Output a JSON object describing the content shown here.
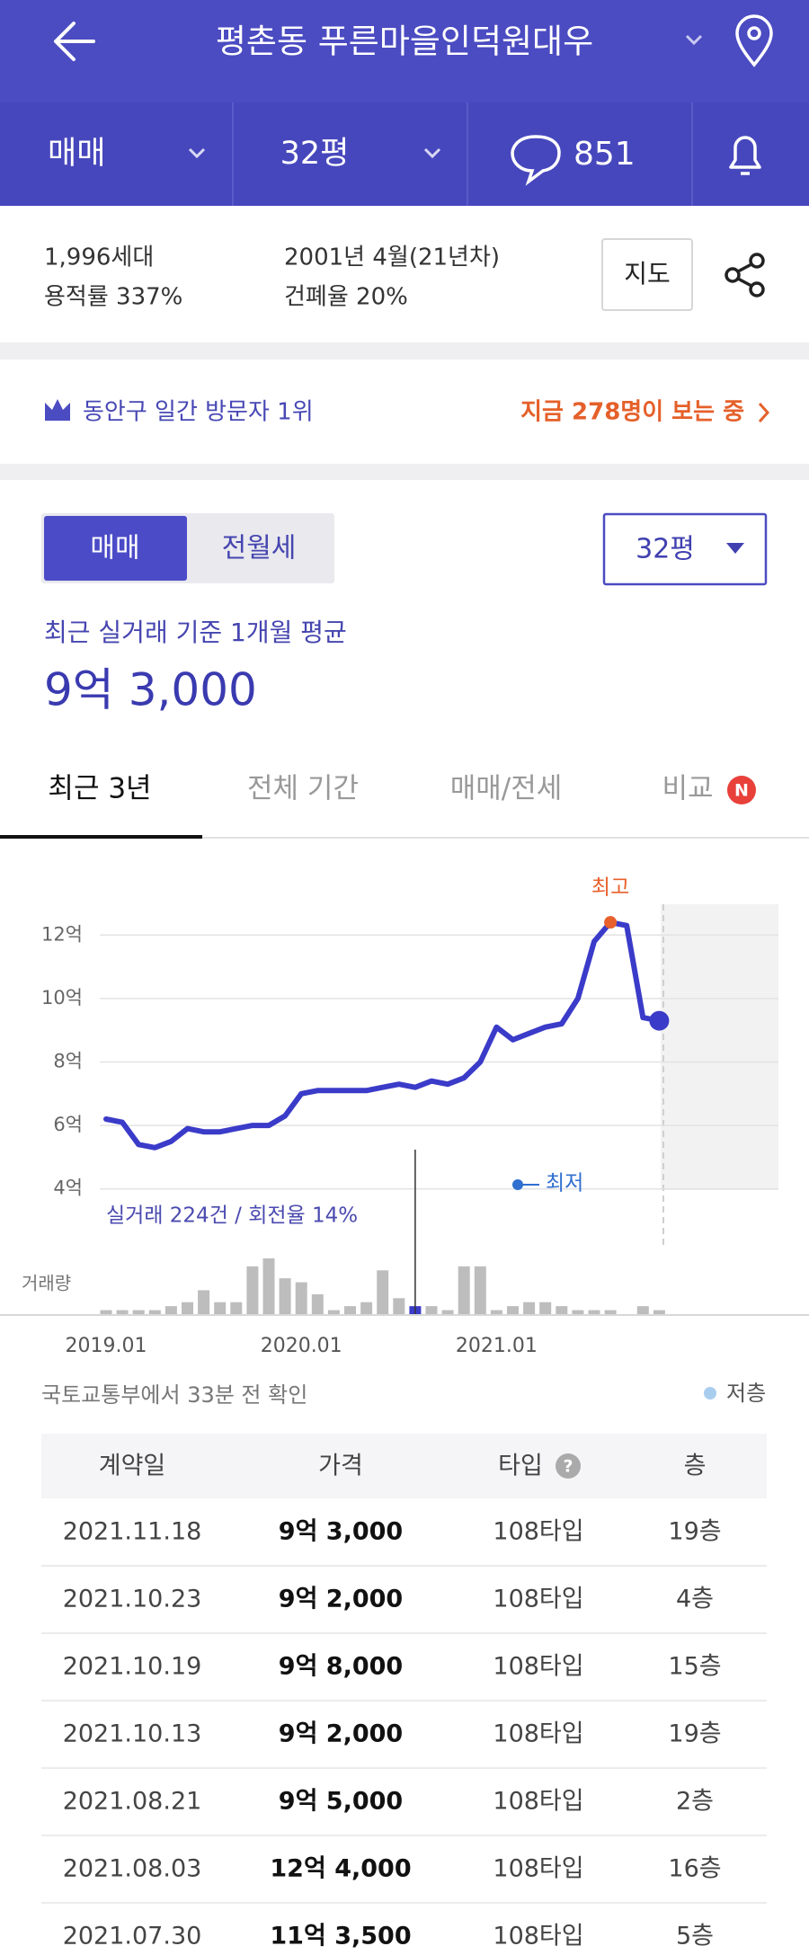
{
  "header": {
    "title": "평촌동 푸른마을인덕원대우",
    "deal_type": "매매",
    "size": "32평",
    "comments": "851"
  },
  "summary": {
    "households": "1,996세대",
    "far": "용적률 337%",
    "built": "2001년 4월(21년차)",
    "bcr": "건폐율 20%",
    "map_button": "지도"
  },
  "banner": {
    "rank": "동안구 일간 방문자 1위",
    "viewers": "지금 278명이 보는 중"
  },
  "price": {
    "tabs": [
      "매매",
      "전월세"
    ],
    "size": "32평",
    "caption": "최근 실거래 기준 1개월 평균",
    "average": "9억 3,000"
  },
  "period_tabs": [
    "최근 3년",
    "전체 기간",
    "매매/전세",
    "비교"
  ],
  "badge": "N",
  "chart_data": {
    "type": "line",
    "categories": [
      "2019.01",
      null,
      null,
      null,
      null,
      null,
      null,
      null,
      null,
      null,
      null,
      null,
      "2020.01",
      null,
      null,
      null,
      null,
      null,
      null,
      null,
      null,
      null,
      null,
      null,
      "2021.01",
      null,
      null,
      null,
      null,
      null,
      null,
      null,
      null,
      null,
      null
    ],
    "values": [
      6.2,
      6.1,
      5.4,
      5.3,
      5.5,
      5.9,
      5.8,
      5.8,
      5.9,
      6.0,
      6.0,
      6.3,
      7.0,
      7.1,
      7.1,
      7.1,
      7.1,
      7.2,
      7.3,
      7.2,
      7.4,
      7.3,
      7.5,
      8.0,
      9.1,
      8.7,
      8.9,
      9.1,
      9.2,
      10.0,
      11.8,
      12.4,
      12.3,
      9.4,
      9.3
    ],
    "color": "#3b3bc9",
    "volume_label": "거래량",
    "volume": [
      1,
      1,
      1,
      1,
      2,
      3,
      6,
      3,
      3,
      12,
      14,
      9,
      8,
      5,
      1,
      2,
      3,
      11,
      4,
      2,
      2,
      1,
      12,
      12,
      1,
      2,
      3,
      3,
      2,
      1,
      1,
      1,
      0,
      2,
      1
    ],
    "volume_color": "#bdbdbd",
    "ylim": [
      3,
      13
    ],
    "yticks": [
      {
        "value": 4,
        "label": "4억"
      },
      {
        "value": 6,
        "label": "6억"
      },
      {
        "value": 8,
        "label": "8억"
      },
      {
        "value": 10,
        "label": "10억"
      },
      {
        "value": 12,
        "label": "12억"
      }
    ],
    "grid": true,
    "annotations": {
      "high": "최고",
      "low": "최저",
      "summary": "실거래 224건 / 회전율 14%"
    }
  },
  "source": "국토교통부에서 33분 전 확인",
  "legend_low": "저층",
  "table": {
    "columns": [
      "계약일",
      "가격",
      "타입",
      "층"
    ],
    "rows": [
      [
        "2021.11.18",
        "9억 3,000",
        "108타입",
        "19층"
      ],
      [
        "2021.10.23",
        "9억 2,000",
        "108타입",
        "4층"
      ],
      [
        "2021.10.19",
        "9억 8,000",
        "108타입",
        "15층"
      ],
      [
        "2021.10.13",
        "9억 2,000",
        "108타입",
        "19층"
      ],
      [
        "2021.08.21",
        "9억 5,000",
        "108타입",
        "2층"
      ],
      [
        "2021.08.03",
        "12억 4,000",
        "108타입",
        "16층"
      ],
      [
        "2021.07.30",
        "11억 3,500",
        "108타입",
        "5층"
      ]
    ]
  }
}
